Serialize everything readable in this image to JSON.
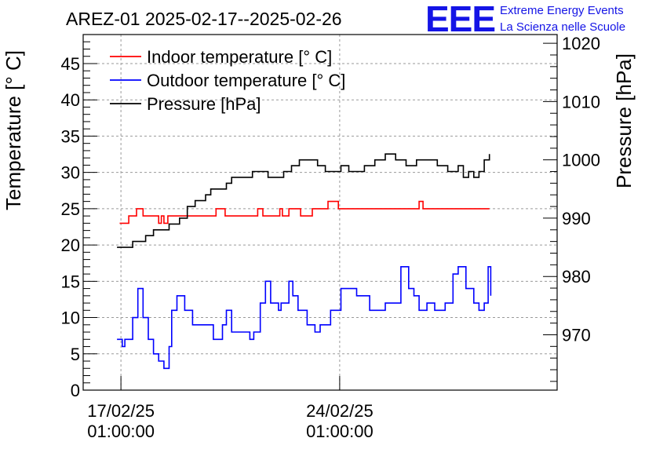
{
  "logo": {
    "mark": "EEE",
    "line1": "Extreme Energy Events",
    "line2": "La Scienza nelle Scuole",
    "color": "#1414e6"
  },
  "chart_data": {
    "type": "line",
    "title": "AREZ-01 2025-02-17--2025-02-26",
    "xlabel": "",
    "ylabel": "Temperature [° C]",
    "y2label": "Pressure [hPa]",
    "xlim": [
      "2025-02-15 20:00",
      "2025-03-03 00:00"
    ],
    "ylim": [
      0,
      49
    ],
    "y2lim": [
      960.5,
      1021.5
    ],
    "xticks": [
      {
        "x": "2025-02-17 01:00",
        "date": "17/02/25",
        "time": "01:00:00"
      },
      {
        "x": "2025-02-24 01:00",
        "date": "24/02/25",
        "time": "01:00:00"
      }
    ],
    "yticks": [
      0,
      5,
      10,
      15,
      20,
      25,
      30,
      35,
      40,
      45
    ],
    "y2ticks": [
      970,
      980,
      990,
      1000,
      1010,
      1020
    ],
    "grid": true,
    "legend_position": "top-left",
    "series": [
      {
        "name": "Indoor temperature [° C]",
        "color": "#ff0000",
        "axis": "left",
        "x": [
          "2025-02-17 00:00",
          "2025-02-17 06:00",
          "2025-02-17 07:00",
          "2025-02-17 12:00",
          "2025-02-17 13:00",
          "2025-02-17 16:00",
          "2025-02-17 18:00",
          "2025-02-17 20:00",
          "2025-02-17 22:00",
          "2025-02-18 05:00",
          "2025-02-18 06:00",
          "2025-02-18 08:00",
          "2025-02-18 10:00",
          "2025-02-18 13:00",
          "2025-02-19 15:00",
          "2025-02-19 21:00",
          "2025-02-20 02:00",
          "2025-02-20 03:00",
          "2025-02-20 09:00",
          "2025-02-21 00:00",
          "2025-02-21 10:00",
          "2025-02-21 14:00",
          "2025-02-21 18:00",
          "2025-02-21 22:00",
          "2025-02-22 03:00",
          "2025-02-22 05:00",
          "2025-02-22 10:00",
          "2025-02-22 19:00",
          "2025-02-23 04:00",
          "2025-02-23 13:00",
          "2025-02-23 16:00",
          "2025-02-24 00:00",
          "2025-02-25 00:00",
          "2025-02-26 12:00",
          "2025-02-26 14:00",
          "2025-02-26 17:00",
          "2025-02-26 20:00",
          "2025-02-27 00:00",
          "2025-02-27 12:00",
          "2025-02-28 00:00",
          "2025-02-28 12:00",
          "2025-02-28 20:00"
        ],
        "values": [
          23,
          23,
          24,
          24,
          25,
          25,
          24,
          24,
          24,
          24,
          23,
          24,
          23,
          24,
          24,
          24,
          25,
          25,
          24,
          24,
          25,
          24,
          24,
          24,
          25,
          24,
          25,
          24,
          25,
          25,
          26,
          25,
          25,
          25,
          26,
          25,
          25,
          25,
          25,
          25,
          25,
          25
        ]
      },
      {
        "name": "Outdoor temperature [° C]",
        "color": "#0000ff",
        "axis": "left",
        "x": [
          "2025-02-16 22:00",
          "2025-02-17 02:00",
          "2025-02-17 04:00",
          "2025-02-17 07:00",
          "2025-02-17 10:00",
          "2025-02-17 14:00",
          "2025-02-17 18:00",
          "2025-02-17 22:00",
          "2025-02-18 02:00",
          "2025-02-18 06:00",
          "2025-02-18 10:00",
          "2025-02-18 14:00",
          "2025-02-18 16:00",
          "2025-02-18 20:00",
          "2025-02-19 02:00",
          "2025-02-19 08:00",
          "2025-02-19 14:00",
          "2025-02-19 20:00",
          "2025-02-20 00:00",
          "2025-02-20 04:00",
          "2025-02-20 07:00",
          "2025-02-20 10:00",
          "2025-02-20 14:00",
          "2025-02-20 18:00",
          "2025-02-20 23:00",
          "2025-02-21 04:00",
          "2025-02-21 07:00",
          "2025-02-21 12:00",
          "2025-02-21 16:00",
          "2025-02-21 20:00",
          "2025-02-22 02:00",
          "2025-02-22 04:00",
          "2025-02-22 10:00",
          "2025-02-22 13:00",
          "2025-02-22 17:00",
          "2025-02-23 00:00",
          "2025-02-23 06:00",
          "2025-02-23 10:00",
          "2025-02-23 18:00",
          "2025-02-24 02:00",
          "2025-02-24 14:00",
          "2025-02-25 00:00",
          "2025-02-25 12:00",
          "2025-02-26 00:00",
          "2025-02-26 06:00",
          "2025-02-26 10:00",
          "2025-02-26 14:00",
          "2025-02-26 20:00",
          "2025-02-27 02:00",
          "2025-02-27 10:00",
          "2025-02-27 16:00",
          "2025-02-27 20:00",
          "2025-02-28 02:00",
          "2025-02-28 08:00",
          "2025-02-28 12:00",
          "2025-02-28 16:00",
          "2025-02-28 19:00",
          "2025-02-28 21:00"
        ],
        "values": [
          7,
          6,
          7,
          7,
          10,
          14,
          10,
          7,
          5,
          4,
          3,
          6,
          11,
          13,
          11,
          9,
          9,
          9,
          7,
          7,
          9,
          11,
          8,
          8,
          8,
          7,
          8,
          12,
          15,
          12,
          11,
          12,
          15,
          13,
          11,
          9,
          8,
          9,
          11,
          14,
          13,
          11,
          12,
          17,
          14,
          13,
          11,
          12,
          11,
          12,
          16,
          17,
          14,
          12,
          11,
          12,
          17,
          13
        ]
      },
      {
        "name": "Pressure [hPa]",
        "color": "#000000",
        "axis": "right",
        "x": [
          "2025-02-16 22:00",
          "2025-02-17 04:00",
          "2025-02-17 10:00",
          "2025-02-17 16:00",
          "2025-02-17 20:00",
          "2025-02-18 02:00",
          "2025-02-18 10:00",
          "2025-02-18 14:00",
          "2025-02-18 18:00",
          "2025-02-18 22:00",
          "2025-02-19 04:00",
          "2025-02-19 10:00",
          "2025-02-19 18:00",
          "2025-02-19 22:00",
          "2025-02-20 05:00",
          "2025-02-20 10:00",
          "2025-02-20 14:00",
          "2025-02-20 22:00",
          "2025-02-21 06:00",
          "2025-02-21 10:00",
          "2025-02-21 14:00",
          "2025-02-21 18:00",
          "2025-02-22 00:00",
          "2025-02-22 06:00",
          "2025-02-22 12:00",
          "2025-02-22 18:00",
          "2025-02-23 00:00",
          "2025-02-23 08:00",
          "2025-02-23 14:00",
          "2025-02-23 20:00",
          "2025-02-24 02:00",
          "2025-02-24 08:00",
          "2025-02-24 14:00",
          "2025-02-24 20:00",
          "2025-02-25 04:00",
          "2025-02-25 12:00",
          "2025-02-25 20:00",
          "2025-02-26 04:00",
          "2025-02-26 12:00",
          "2025-02-26 20:00",
          "2025-02-27 04:00",
          "2025-02-27 12:00",
          "2025-02-27 20:00",
          "2025-02-28 00:00",
          "2025-02-28 04:00",
          "2025-02-28 08:00",
          "2025-02-28 12:00",
          "2025-02-28 16:00",
          "2025-02-28 20:00"
        ],
        "values": [
          985,
          985,
          986,
          986,
          987,
          988,
          988,
          989,
          989,
          990,
          992,
          993,
          994,
          995,
          995,
          996,
          997,
          997,
          998,
          998,
          998,
          997,
          997,
          998,
          999,
          1000,
          1000,
          999,
          998,
          998,
          999,
          998,
          998,
          999,
          1000,
          1001,
          1000,
          999,
          1000,
          1000,
          999,
          998,
          999,
          997,
          998,
          997,
          998,
          1000,
          1001
        ]
      }
    ]
  }
}
